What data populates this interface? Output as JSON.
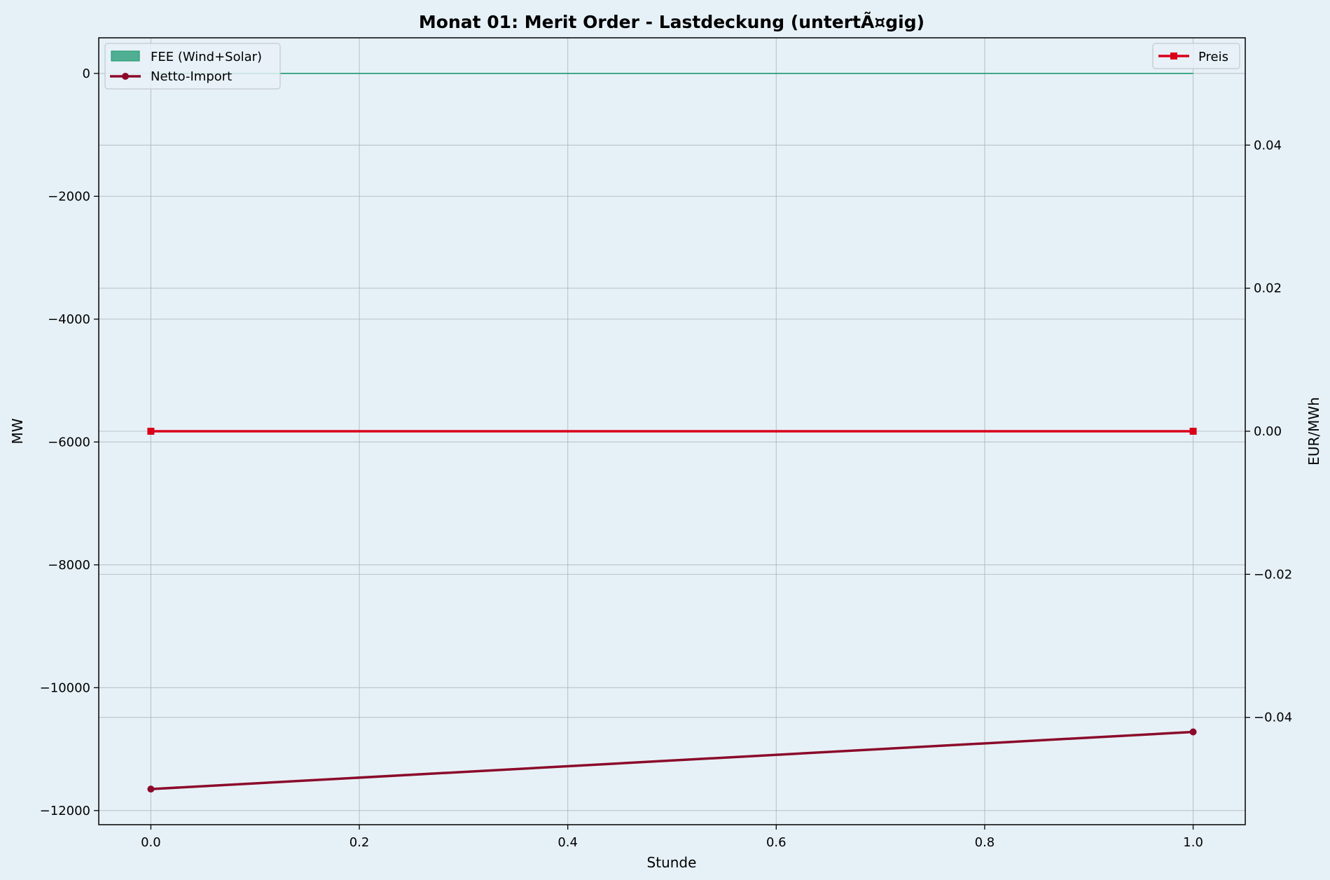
{
  "chart_data": {
    "type": "line",
    "title": "Monat 01: Merit Order - Lastdeckung (untertÃ¤gig)",
    "xlabel": "Stunde",
    "ylabel_left": "MW",
    "ylabel_right": "EUR/MWh",
    "xlim": [
      -0.05,
      1.05
    ],
    "ylim_left": [
      -12230,
      580
    ],
    "ylim_right": [
      -0.055,
      0.055
    ],
    "x_ticks": [
      0.0,
      0.2,
      0.4,
      0.6,
      0.8,
      1.0
    ],
    "x_tick_labels": [
      "0.0",
      "0.2",
      "0.4",
      "0.6",
      "0.8",
      "1.0"
    ],
    "y_left_ticks": [
      0,
      -2000,
      -4000,
      -6000,
      -8000,
      -10000,
      -12000
    ],
    "y_left_tick_labels": [
      "0",
      "−2000",
      "−4000",
      "−6000",
      "−8000",
      "−10000",
      "−12000"
    ],
    "y_right_ticks": [
      0.04,
      0.02,
      0.0,
      -0.02,
      -0.04
    ],
    "y_right_tick_labels": [
      "0.04",
      "0.02",
      "0.00",
      "−0.02",
      "−0.04"
    ],
    "grid": true,
    "series": [
      {
        "name": "FEE (Wind+Solar)",
        "kind": "area",
        "axis": "left",
        "x": [
          0,
          1
        ],
        "y": [
          0,
          0
        ],
        "color": "#2a9d78"
      },
      {
        "name": "Netto-Import",
        "kind": "line",
        "axis": "left",
        "marker": "circle",
        "x": [
          0,
          1
        ],
        "y": [
          -11650,
          -10720
        ],
        "color": "#8b0a2a"
      },
      {
        "name": "Preis",
        "kind": "line",
        "axis": "right",
        "marker": "square",
        "x": [
          0,
          1
        ],
        "y": [
          0.0,
          0.0
        ],
        "color": "#d9001b"
      }
    ],
    "legend_left": {
      "placement": "upper-left",
      "entries": [
        "FEE (Wind+Solar)",
        "Netto-Import"
      ]
    },
    "legend_right": {
      "placement": "upper-right",
      "entries": [
        "Preis"
      ]
    }
  }
}
